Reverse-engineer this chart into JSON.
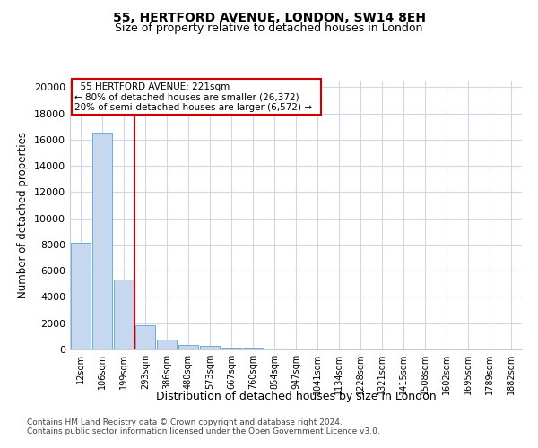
{
  "title1": "55, HERTFORD AVENUE, LONDON, SW14 8EH",
  "title2": "Size of property relative to detached houses in London",
  "xlabel": "Distribution of detached houses by size in London",
  "ylabel": "Number of detached properties",
  "bin_labels": [
    "12sqm",
    "106sqm",
    "199sqm",
    "293sqm",
    "386sqm",
    "480sqm",
    "573sqm",
    "667sqm",
    "760sqm",
    "854sqm",
    "947sqm",
    "1041sqm",
    "1134sqm",
    "1228sqm",
    "1321sqm",
    "1415sqm",
    "1508sqm",
    "1602sqm",
    "1695sqm",
    "1789sqm",
    "1882sqm"
  ],
  "bin_values": [
    8100,
    16550,
    5300,
    1870,
    750,
    370,
    240,
    170,
    130,
    90,
    0,
    0,
    0,
    0,
    0,
    0,
    0,
    0,
    0,
    0,
    0
  ],
  "bar_color": "#c5d8f0",
  "bar_edge_color": "#6baed6",
  "vline_x": 2.5,
  "vline_color": "#cc0000",
  "annotation_title": "55 HERTFORD AVENUE: 221sqm",
  "annotation_line1": "← 80% of detached houses are smaller (26,372)",
  "annotation_line2": "20% of semi-detached houses are larger (6,572) →",
  "annotation_box_color": "#cc0000",
  "ylim": [
    0,
    20500
  ],
  "yticks": [
    0,
    2000,
    4000,
    6000,
    8000,
    10000,
    12000,
    14000,
    16000,
    18000,
    20000
  ],
  "footer1": "Contains HM Land Registry data © Crown copyright and database right 2024.",
  "footer2": "Contains public sector information licensed under the Open Government Licence v3.0.",
  "bg_color": "#ffffff",
  "grid_color": "#d0d8e8"
}
